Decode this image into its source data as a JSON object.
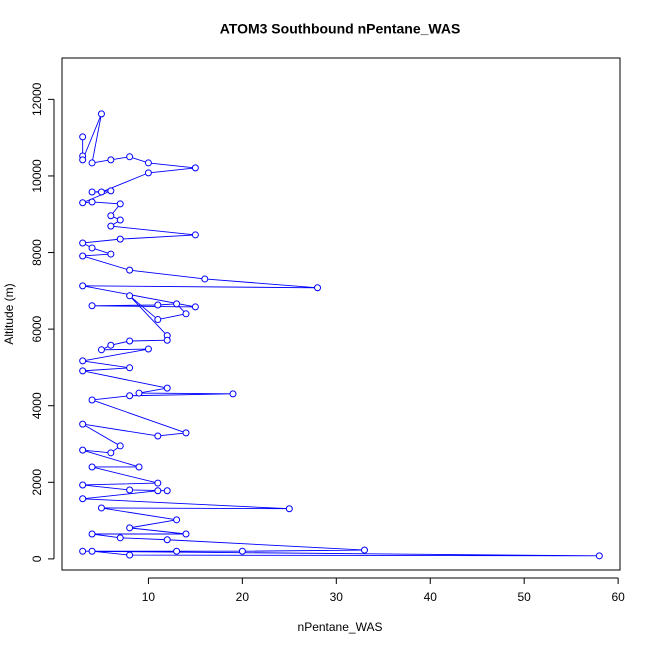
{
  "chart_data": {
    "type": "line",
    "title": "ATOM3 Southbound nPentane_WAS",
    "x_label": "nPentane_WAS",
    "y_label": "Altitude (m)",
    "color": "#0000ff",
    "markers": true,
    "grid": false,
    "xlim": [
      0.8,
      60.2
    ],
    "ylim": [
      -290,
      13080
    ],
    "xticks": [
      10,
      20,
      30,
      40,
      50,
      60
    ],
    "yticks": [
      0,
      2000,
      4000,
      6000,
      8000,
      10000,
      12000
    ],
    "x": [
      3,
      3,
      3,
      5,
      4,
      6,
      8,
      10,
      15,
      10,
      5,
      4,
      6,
      3,
      4,
      7,
      6,
      7,
      6,
      15,
      7,
      3,
      4,
      6,
      3,
      8,
      16,
      28,
      3,
      15,
      4,
      11,
      13,
      14,
      11,
      8,
      12,
      12,
      8,
      6,
      5,
      10,
      3,
      8,
      3,
      12,
      9,
      19,
      8,
      4,
      14,
      11,
      3,
      7,
      6,
      3,
      9,
      4,
      11,
      3,
      8,
      12,
      11,
      3,
      25,
      5,
      13,
      8,
      14,
      4,
      7,
      12,
      33,
      20,
      13,
      3,
      58,
      8,
      4
    ],
    "series": [
      {
        "name": "nPentane_WAS",
        "values": [
          11020,
          10520,
          10420,
          11620,
          10340,
          10420,
          10500,
          10340,
          10210,
          10080,
          9580,
          9580,
          9610,
          9300,
          9320,
          9270,
          8960,
          8850,
          8690,
          8460,
          8350,
          8250,
          8120,
          7960,
          7910,
          7540,
          7310,
          7080,
          7130,
          6580,
          6610,
          6630,
          6660,
          6400,
          6250,
          6870,
          5830,
          5710,
          5690,
          5580,
          5460,
          5480,
          5170,
          4990,
          4910,
          4460,
          4330,
          4310,
          4260,
          4150,
          3290,
          3210,
          3520,
          2950,
          2770,
          2840,
          2400,
          2400,
          1980,
          1930,
          1800,
          1780,
          1780,
          1570,
          1310,
          1330,
          1020,
          810,
          650,
          650,
          550,
          500,
          230,
          200,
          200,
          200,
          80,
          100,
          200
        ]
      }
    ]
  }
}
